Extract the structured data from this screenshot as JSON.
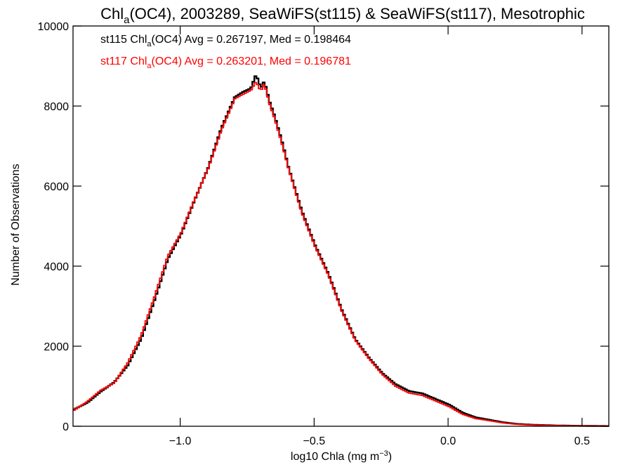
{
  "chart_data": {
    "type": "line",
    "title": {
      "base": "Chl",
      "sub": "a",
      "rest": "(OC4), 2003289, SeaWiFS(st115) & SeaWiFS(st117), Mesotrophic"
    },
    "xlabel": {
      "base": "log10 Chla (mg m",
      "sup": "−3",
      "end": ")"
    },
    "ylabel": "Number of Observations",
    "xlim": [
      -1.4,
      0.6
    ],
    "ylim": [
      0,
      10000
    ],
    "xticks": [
      {
        "value": -1.0,
        "label": "−1.0"
      },
      {
        "value": -0.5,
        "label": "−0.5"
      },
      {
        "value": 0.0,
        "label": "0.0"
      },
      {
        "value": 0.5,
        "label": "0.5"
      }
    ],
    "yticks": [
      {
        "value": 0,
        "label": "0"
      },
      {
        "value": 2000,
        "label": "2000"
      },
      {
        "value": 4000,
        "label": "4000"
      },
      {
        "value": 6000,
        "label": "6000"
      },
      {
        "value": 8000,
        "label": "8000"
      },
      {
        "value": 10000,
        "label": "10000"
      }
    ],
    "grid": false,
    "legend_placement": "top-left",
    "step": true,
    "series": [
      {
        "color": "#000000",
        "legend": {
          "prefix": "st115 Chl",
          "sub": "a",
          "suffix": "(OC4) Avg = 0.267197, Med = 0.198464"
        },
        "x": [
          -1.4,
          -1.35,
          -1.3,
          -1.25,
          -1.2,
          -1.15,
          -1.1,
          -1.05,
          -1.0,
          -0.95,
          -0.9,
          -0.85,
          -0.8,
          -0.77,
          -0.74,
          -0.72,
          -0.71,
          -0.7,
          -0.69,
          -0.67,
          -0.65,
          -0.62,
          -0.6,
          -0.55,
          -0.5,
          -0.45,
          -0.4,
          -0.35,
          -0.3,
          -0.25,
          -0.2,
          -0.15,
          -0.1,
          -0.05,
          0.0,
          0.05,
          0.1,
          0.15,
          0.2,
          0.25,
          0.3,
          0.35,
          0.4,
          0.45,
          0.5,
          0.55,
          0.6
        ],
        "y": [
          420,
          590,
          870,
          1100,
          1520,
          2180,
          3150,
          4180,
          4810,
          5650,
          6450,
          7450,
          8220,
          8350,
          8440,
          8800,
          8560,
          8480,
          8620,
          8100,
          7720,
          7020,
          6480,
          5380,
          4520,
          3800,
          2900,
          2170,
          1720,
          1330,
          1050,
          880,
          820,
          680,
          540,
          340,
          220,
          160,
          100,
          60,
          40,
          30,
          20,
          15,
          10,
          8,
          5
        ]
      },
      {
        "color": "#ff0000",
        "legend": {
          "prefix": "st117 Chl",
          "sub": "a",
          "suffix": "(OC4) Avg = 0.263201, Med = 0.196781"
        },
        "x": [
          -1.4,
          -1.35,
          -1.3,
          -1.25,
          -1.2,
          -1.15,
          -1.1,
          -1.05,
          -1.0,
          -0.95,
          -0.9,
          -0.85,
          -0.8,
          -0.77,
          -0.74,
          -0.72,
          -0.71,
          -0.7,
          -0.69,
          -0.67,
          -0.65,
          -0.62,
          -0.6,
          -0.55,
          -0.5,
          -0.45,
          -0.4,
          -0.35,
          -0.3,
          -0.25,
          -0.2,
          -0.15,
          -0.1,
          -0.05,
          0.0,
          0.05,
          0.1,
          0.15,
          0.2,
          0.25,
          0.3,
          0.35,
          0.4,
          0.45,
          0.5,
          0.55,
          0.6
        ],
        "y": [
          400,
          620,
          900,
          1080,
          1580,
          2260,
          3230,
          4250,
          4840,
          5670,
          6430,
          7400,
          8180,
          8290,
          8390,
          8620,
          8440,
          8420,
          8560,
          8050,
          7660,
          6970,
          6460,
          5340,
          4490,
          3770,
          2870,
          2150,
          1700,
          1300,
          1000,
          830,
          770,
          630,
          490,
          300,
          190,
          140,
          85,
          50,
          35,
          25,
          15,
          10,
          8,
          5,
          3
        ]
      }
    ]
  }
}
